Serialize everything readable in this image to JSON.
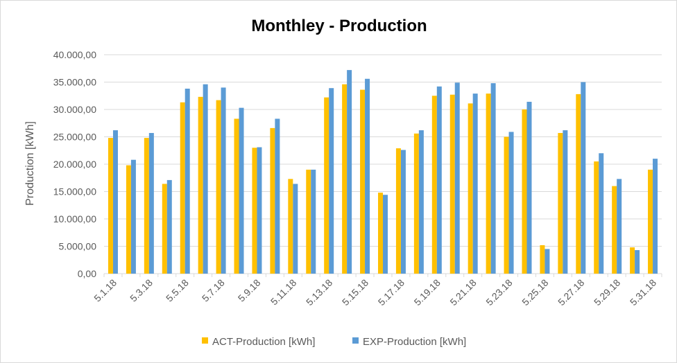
{
  "chart_data": {
    "type": "bar",
    "title": "Monthley - Production",
    "xlabel": "",
    "ylabel": "Production [kWh]",
    "ylim": [
      0,
      40000
    ],
    "yticks": [
      0,
      5000,
      10000,
      15000,
      20000,
      25000,
      30000,
      35000,
      40000
    ],
    "ytick_labels": [
      "0,00",
      "5.000,00",
      "10.000,00",
      "15.000,00",
      "20.000,00",
      "25.000,00",
      "30.000,00",
      "35.000,00",
      "40.000,00"
    ],
    "grid": true,
    "legend": "bottom",
    "categories": [
      "5.1.18",
      "5.2.18",
      "5.3.18",
      "5.4.18",
      "5.5.18",
      "5.6.18",
      "5.7.18",
      "5.8.18",
      "5.9.18",
      "5.10.18",
      "5.11.18",
      "5.12.18",
      "5.13.18",
      "5.14.18",
      "5.15.18",
      "5.16.18",
      "5.17.18",
      "5.18.18",
      "5.19.18",
      "5.20.18",
      "5.21.18",
      "5.22.18",
      "5.23.18",
      "5.24.18",
      "5.25.18",
      "5.26.18",
      "5.27.18",
      "5.28.18",
      "5.29.18",
      "5.30.18",
      "5.31.18"
    ],
    "visible_category_labels": [
      "5.1.18",
      "5.3.18",
      "5.5.18",
      "5.7.18",
      "5.9.18",
      "5.11.18",
      "5.13.18",
      "5.15.18",
      "5.17.18",
      "5.19.18",
      "5.21.18",
      "5.23.18",
      "5.25.18",
      "5.27.18",
      "5.29.18",
      "5.31.18"
    ],
    "series": [
      {
        "name": "ACT-Production [kWh]",
        "color": "#FFC000",
        "values": [
          24800,
          19800,
          24800,
          16400,
          31300,
          32300,
          31700,
          28300,
          23000,
          26600,
          17300,
          19000,
          32200,
          34600,
          33600,
          14800,
          22900,
          25600,
          32500,
          32700,
          31100,
          32900,
          25000,
          30000,
          5200,
          25700,
          32800,
          20500,
          16000,
          4800,
          19000
        ]
      },
      {
        "name": "EXP-Production [kWh]",
        "color": "#5B9BD5",
        "values": [
          26200,
          20800,
          25700,
          17100,
          33800,
          34600,
          34000,
          30300,
          23100,
          28300,
          16400,
          19000,
          33900,
          37200,
          35600,
          14400,
          22600,
          26200,
          34200,
          34900,
          32900,
          34800,
          25900,
          31400,
          4500,
          26200,
          35000,
          22000,
          17300,
          4300,
          21000
        ]
      }
    ]
  }
}
